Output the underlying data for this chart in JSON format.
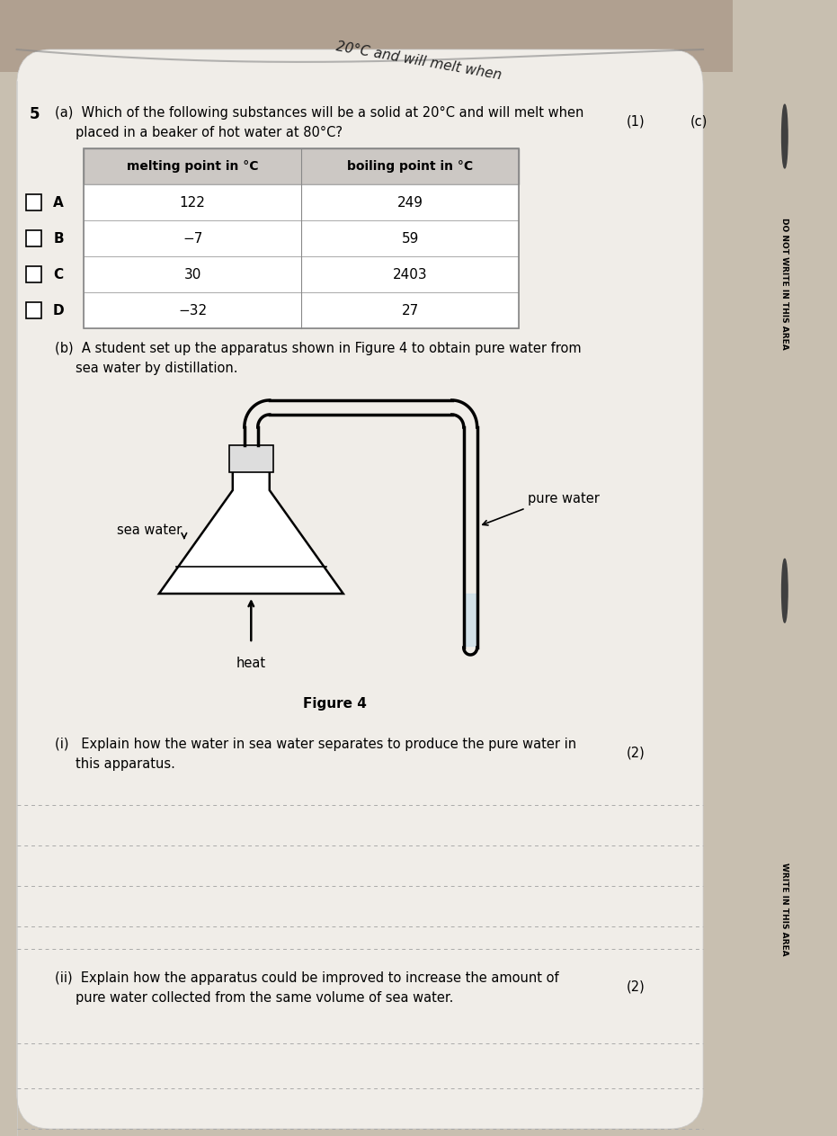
{
  "bg_color": "#c8bfb0",
  "page_bg": "#f0ede8",
  "title_top": "20°C and will melt when",
  "q5_label": "5",
  "mark1": "(1)",
  "side_c": "(c)",
  "table_header": [
    "melting point in °C",
    "boiling point in °C"
  ],
  "rows": [
    [
      "A",
      "122",
      "249"
    ],
    [
      "B",
      "−7",
      "59"
    ],
    [
      "C",
      "30",
      "2403"
    ],
    [
      "D",
      "−32",
      "27"
    ]
  ],
  "qb_line1": "(b)  A student set up the apparatus shown in Figure 4 to obtain pure water from",
  "qb_line2": "sea water by distillation.",
  "sea_water_label": "sea water",
  "pure_water_label": "pure water",
  "heat_label": "heat",
  "figure_label": "Figure 4",
  "qi_line1": "(i)   Explain how the water in sea water separates to produce the pure water in",
  "qi_line2": "this apparatus.",
  "mark2": "(2)",
  "qii_line1": "(ii)  Explain how the apparatus could be improved to increase the amount of",
  "qii_line2": "pure water collected from the same volume of sea water.",
  "mark3": "(2)",
  "do_not_write": "DO NOT WRITE IN THIS AREA",
  "write_area": "WRITE IN THIS AREA"
}
